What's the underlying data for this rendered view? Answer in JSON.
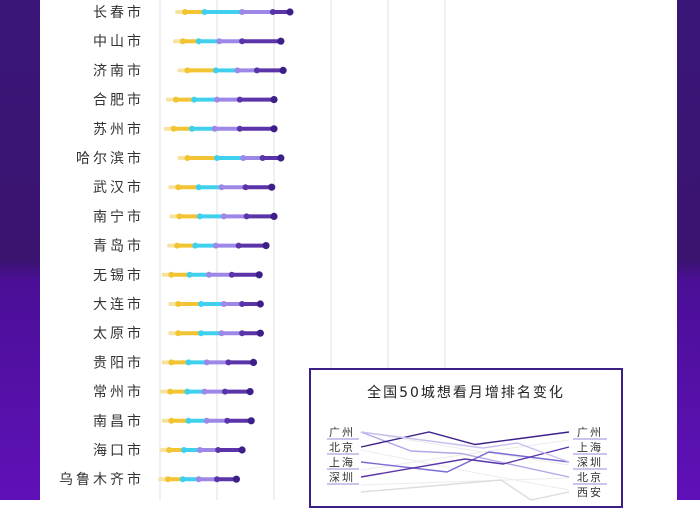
{
  "colors": {
    "bg_top": "#3a1678",
    "bg_bottom": "#5a12a8",
    "band_dark": "#4c1c86",
    "yellow": "#f2c431",
    "cyan": "#3fd0ee",
    "lavender": "#9d88e8",
    "purple": "#5a34a8",
    "dark_purple": "#3d1f8a",
    "grid": "#e2e2e2"
  },
  "chart_data": {
    "type": "dot-range",
    "categories": [
      "长春市",
      "中山市",
      "济南市",
      "合肥市",
      "苏州市",
      "哈尔滨市",
      "武汉市",
      "南宁市",
      "青岛市",
      "无锡市",
      "大连市",
      "太原市",
      "贵阳市",
      "常州市",
      "南昌市",
      "海口市",
      "乌鲁木齐市"
    ],
    "points": [
      [
        22,
        39,
        72,
        99,
        114
      ],
      [
        20,
        34,
        52,
        72,
        106
      ],
      [
        24,
        49,
        68,
        85,
        108
      ],
      [
        14,
        30,
        50,
        70,
        100
      ],
      [
        12,
        28,
        48,
        70,
        100
      ],
      [
        24,
        50,
        73,
        90,
        106
      ],
      [
        16,
        34,
        54,
        75,
        98
      ],
      [
        17,
        35,
        56,
        76,
        100
      ],
      [
        15,
        31,
        49,
        69,
        93
      ],
      [
        10,
        26,
        43,
        63,
        87
      ],
      [
        16,
        36,
        56,
        72,
        88
      ],
      [
        16,
        36,
        54,
        72,
        88
      ],
      [
        10,
        25,
        41,
        60,
        82
      ],
      [
        9,
        24,
        39,
        57,
        79
      ],
      [
        10,
        25,
        41,
        59,
        80
      ],
      [
        8,
        21,
        35,
        51,
        72
      ],
      [
        7,
        20,
        34,
        50,
        67
      ]
    ],
    "xlim": [
      0,
      300
    ]
  },
  "rank_chart": {
    "title": "全国50城想看月增排名变化",
    "left_labels": [
      "广州",
      "北京",
      "上海",
      "深圳"
    ],
    "right_labels": [
      "广州",
      "上海",
      "深圳",
      "北京",
      "西安"
    ],
    "lines": [
      {
        "left": 1,
        "right": 4
      },
      {
        "left": 2,
        "right": 1
      },
      {
        "left": 3,
        "right": 3
      },
      {
        "left": 4,
        "right": 2
      },
      {
        "left": 1,
        "right": 3
      },
      {
        "left": 5,
        "right": 5
      }
    ]
  }
}
